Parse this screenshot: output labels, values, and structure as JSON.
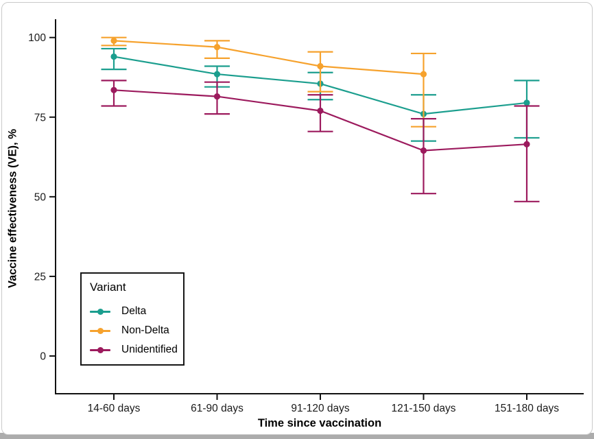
{
  "page": {
    "background_color": "#ffffff",
    "bottom_strip_color": "#acacac"
  },
  "chart_data": {
    "type": "line",
    "title": "",
    "xlabel": "Time since vaccination",
    "ylabel": "Vaccine effectiveness (VE), %",
    "categories": [
      "14-60 days",
      "61-90 days",
      "91-120 days",
      "121-150 days",
      "151-180 days"
    ],
    "yticks": [
      0,
      25,
      50,
      75,
      100
    ],
    "ylim": [
      0,
      100
    ],
    "grid": false,
    "error_bars": true,
    "axis_color": "#111111",
    "legend": {
      "title": "Variant",
      "position": "inside-bottom-left"
    },
    "series": [
      {
        "name": "Delta",
        "color": "#1b9e8e",
        "values": [
          94,
          88.5,
          85.5,
          76,
          79.5
        ],
        "ci_low": [
          90,
          84.5,
          80.5,
          67.5,
          68.5
        ],
        "ci_high": [
          96.5,
          91,
          89,
          82,
          86.5
        ]
      },
      {
        "name": "Non-Delta",
        "color": "#f6a22d",
        "values": [
          99,
          97,
          91,
          88.5,
          null
        ],
        "ci_low": [
          97.5,
          93.5,
          83,
          72,
          null
        ],
        "ci_high": [
          100,
          99,
          95.5,
          95,
          null
        ]
      },
      {
        "name": "Unidentified",
        "color": "#9c1a5d",
        "values": [
          83.5,
          81.5,
          77,
          64.5,
          66.5
        ],
        "ci_low": [
          78.5,
          76,
          70.5,
          51,
          48.5
        ],
        "ci_high": [
          86.5,
          86,
          82,
          74.5,
          78.5
        ]
      }
    ]
  }
}
